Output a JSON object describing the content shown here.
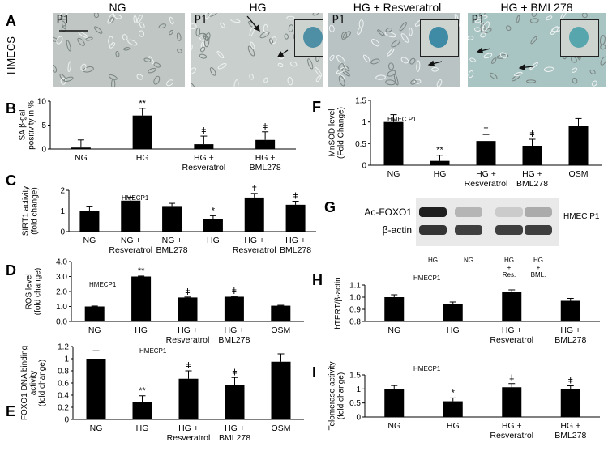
{
  "panel_a": {
    "label": "A",
    "row_label": "HMECS",
    "images": [
      {
        "title": "NG",
        "tag": "P1",
        "has_inset": false
      },
      {
        "title": "HG",
        "tag": "P1",
        "has_inset": true
      },
      {
        "title": "HG + Resveratrol",
        "tag": "P1",
        "has_inset": true
      },
      {
        "title": "HG +  BML278",
        "tag": "P1",
        "has_inset": true
      }
    ]
  },
  "panel_g": {
    "label": "G",
    "rows": [
      "Ac-FOXO1",
      "β-actin"
    ],
    "side_label": "HMEC P1",
    "lanes": [
      "HG",
      "NG",
      "HG\n+\nRes.",
      "HG\n+\nBML."
    ],
    "band_intensity": [
      [
        0.95,
        0.25,
        0.15,
        0.3
      ],
      [
        0.85,
        0.8,
        0.8,
        0.8
      ]
    ]
  },
  "chart_data": [
    {
      "panel": "B",
      "type": "bar",
      "inner_label": "",
      "ylabel": [
        "SA β-gal",
        "positivity in %"
      ],
      "categories": [
        "NG",
        "HG",
        "HG +\nResveratrol",
        "HG +\nBML278"
      ],
      "values": [
        0.3,
        7,
        1,
        1.9
      ],
      "errors": [
        1.6,
        1.5,
        1.7,
        1.7
      ],
      "marks": [
        "",
        "**",
        "ǂ",
        "ǂ"
      ],
      "ylim": [
        0,
        10
      ],
      "yticks": [
        "0",
        "5",
        "10"
      ]
    },
    {
      "panel": "C",
      "type": "bar",
      "inner_label": "HMECP1",
      "ylabel": [
        "SIRT1  activity",
        "(fold change)"
      ],
      "categories": [
        "NG",
        "NG +\nResveratrol",
        "NG +\nBML278",
        "HG",
        "HG +\nResveratrol",
        "HG +\nBML278"
      ],
      "values": [
        1,
        1.5,
        1.2,
        0.6,
        1.65,
        1.3
      ],
      "errors": [
        0.2,
        0.17,
        0.17,
        0.17,
        0.2,
        0.17
      ],
      "marks": [
        "",
        "",
        "",
        "*",
        "ǂ",
        "ǂ"
      ],
      "ylim": [
        0,
        2
      ],
      "yticks": [
        "0",
        "1",
        "2"
      ]
    },
    {
      "panel": "D",
      "type": "bar",
      "inner_label": "HMECP1",
      "ylabel": [
        "ROS level",
        "(fold change)"
      ],
      "categories": [
        "NG",
        "HG",
        "HG +\nResveratrol",
        "HG +\nBML278",
        "OSM"
      ],
      "values": [
        1,
        3,
        1.6,
        1.65,
        1.05
      ],
      "errors": [
        0.03,
        0.03,
        0.03,
        0.03,
        0.03
      ],
      "marks": [
        "",
        "**",
        "ǂ",
        "ǂ",
        ""
      ],
      "ylim": [
        0,
        4
      ],
      "yticks": [
        "0.0",
        "1.0",
        "2.0",
        "3.0",
        "4.0"
      ]
    },
    {
      "panel": "E",
      "type": "bar",
      "inner_label": "HMECP1",
      "ylabel": [
        "FOXO1 DNA binding",
        "activity",
        "(fold change)"
      ],
      "categories": [
        "NG",
        "HG",
        "HG +\nResveratrol",
        "HG +\nBML278",
        "OSM"
      ],
      "values": [
        1,
        0.28,
        0.67,
        0.56,
        0.95
      ],
      "errors": [
        0.13,
        0.11,
        0.13,
        0.13,
        0.13
      ],
      "marks": [
        "",
        "**",
        "ǂ",
        "ǂ",
        ""
      ],
      "ylim": [
        0,
        1.2
      ],
      "yticks": [
        "0",
        "0.2",
        "0.4",
        "0.6",
        "0.8",
        "1",
        "1.2"
      ]
    },
    {
      "panel": "F",
      "type": "bar",
      "inner_label": "HMEC P1",
      "ylabel": [
        "MnSOD level",
        "(Fold Change)"
      ],
      "categories": [
        "NG",
        "HG",
        "HG +\nResveratrol",
        "HG +\nBML278",
        "OSM"
      ],
      "values": [
        1,
        0.1,
        0.56,
        0.45,
        0.91
      ],
      "errors": [
        0.17,
        0.13,
        0.15,
        0.15,
        0.17
      ],
      "marks": [
        "",
        "**",
        "ǂ",
        "ǂ",
        ""
      ],
      "ylim": [
        0,
        1.5
      ],
      "yticks": [
        "0",
        "0.5",
        "1",
        "1.5"
      ]
    },
    {
      "panel": "H",
      "type": "bar",
      "inner_label": "HMECP1",
      "ylabel": [
        "hTERT/β-actin"
      ],
      "categories": [
        "NG",
        "HG",
        "HG +\nResveratrol",
        "HG +\nBML278"
      ],
      "values": [
        1,
        0.94,
        1.04,
        0.97
      ],
      "errors": [
        0.02,
        0.02,
        0.02,
        0.02
      ],
      "marks": [
        "",
        "",
        "",
        ""
      ],
      "ylim": [
        0.8,
        1.1
      ],
      "yticks": [
        "0.8",
        "0.9",
        "1.0",
        "1.1"
      ]
    },
    {
      "panel": "I",
      "type": "bar",
      "inner_label": "HMECP1",
      "ylabel": [
        "Telomerase activity",
        "(fold change)"
      ],
      "categories": [
        "NG",
        "HG",
        "HG +\nResveratrol",
        "HG +\nBML278"
      ],
      "values": [
        1,
        0.56,
        1.06,
        0.99
      ],
      "errors": [
        0.12,
        0.12,
        0.13,
        0.12
      ],
      "marks": [
        "",
        "*",
        "ǂ",
        "ǂ"
      ],
      "ylim": [
        0,
        1.5
      ],
      "yticks": [
        "0",
        "0.5",
        "1",
        "1.5"
      ]
    }
  ]
}
